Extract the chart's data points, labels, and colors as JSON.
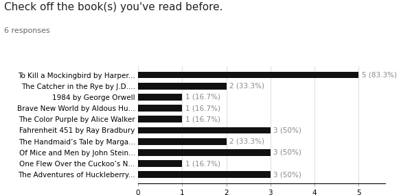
{
  "title": "Check off the book(s) you've read before.",
  "subtitle": "6 responses",
  "categories": [
    "To Kill a Mockingbird by Harper...",
    "The Catcher in the Rye by J.D....",
    "1984 by George Orwell",
    "Brave New World by Aldous Hu...",
    "The Color Purple by Alice Walker",
    "Fahrenheit 451 by Ray Bradbury",
    "The Handmaid’s Tale by Marga...",
    "Of Mice and Men by John Stein...",
    "One Flew Over the Cuckoo’s N...",
    "The Adventures of Huckleberry..."
  ],
  "values": [
    5,
    2,
    1,
    1,
    1,
    3,
    2,
    3,
    1,
    3
  ],
  "labels": [
    "5 (83.3%)",
    "2 (33.3%)",
    "1 (16.7%)",
    "1 (16.7%)",
    "1 (16.7%)",
    "3 (50%)",
    "2 (33.3%)",
    "3 (50%)",
    "1 (16.7%)",
    "3 (50%)"
  ],
  "bar_color": "#111111",
  "label_color": "#888888",
  "title_fontsize": 11,
  "subtitle_fontsize": 8,
  "tick_fontsize": 7.5,
  "label_fontsize": 7.5,
  "xlim": [
    0,
    5.6
  ],
  "xticks": [
    0,
    1,
    2,
    3,
    4,
    5
  ],
  "background_color": "#ffffff",
  "bar_height": 0.6,
  "grid_color": "#e0e0e0"
}
